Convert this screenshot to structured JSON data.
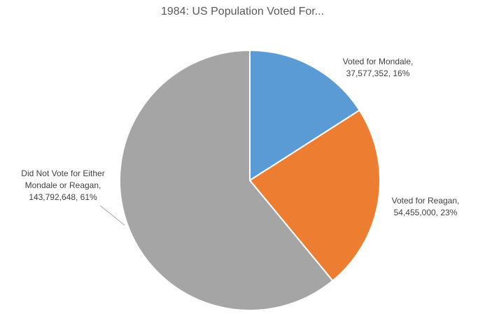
{
  "chart_data": {
    "type": "pie",
    "title": "1984: US Population Voted For...",
    "start_angle_deg": 0,
    "direction": "clockwise",
    "slices": [
      {
        "label": "Voted for Mondale",
        "value": 37577352,
        "value_text": "37,577,352",
        "percent_text": "16%",
        "color": "#5B9BD5"
      },
      {
        "label": "Voted for Reagan",
        "value": 54455000,
        "value_text": "54,455,000",
        "percent_text": "23%",
        "color": "#ED7D31"
      },
      {
        "label": "Did Not Vote for Either Mondale or Reagan",
        "value": 143792648,
        "value_text": "143,792,648",
        "percent_text": "61%",
        "color": "#A5A5A5"
      }
    ],
    "data_labels": [
      {
        "lines": [
          "Voted for Mondale,",
          "37,577,352, 16%"
        ]
      },
      {
        "lines": [
          "Voted for Reagan,",
          "54,455,000, 23%"
        ]
      },
      {
        "lines": [
          "Did Not Vote for Either",
          "Mondale or Reagan,",
          "143,792,648, 61%"
        ]
      }
    ]
  }
}
